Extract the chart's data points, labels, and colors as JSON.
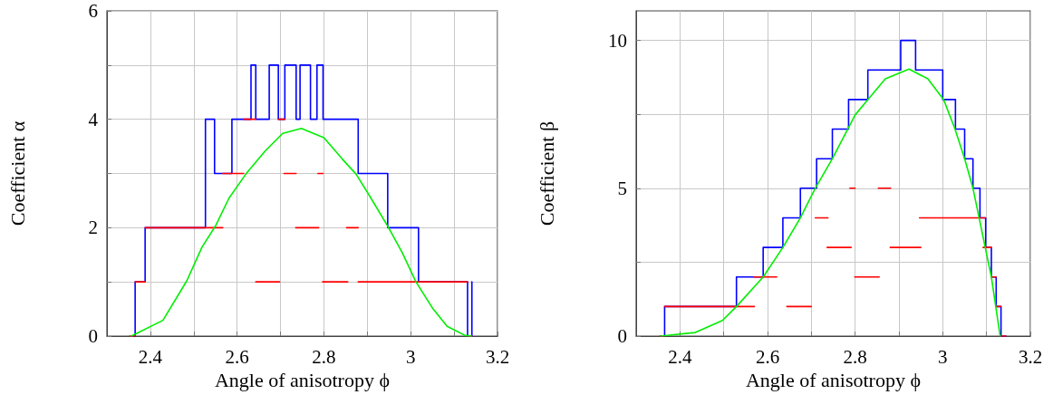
{
  "chart_data": [
    {
      "type": "line",
      "xlabel": "Angle of anisotropy ϕ",
      "ylabel": "Coefficient α",
      "xlim": [
        2.3,
        3.2
      ],
      "ylim": [
        0,
        6
      ],
      "xticks": [
        2.4,
        {
          "value": 2.5,
          "label": null
        },
        2.6,
        {
          "value": 2.7,
          "label": null
        },
        2.8,
        {
          "value": 2.9,
          "label": null
        },
        3,
        {
          "value": 3.1,
          "label": null
        },
        3.2
      ],
      "yticks": [
        0,
        {
          "value": 1,
          "label": null
        },
        2,
        {
          "value": 3,
          "label": null
        },
        4,
        {
          "value": 5,
          "label": null
        },
        6
      ],
      "grid": true,
      "marker": "none",
      "line_style": "solid",
      "series": [
        {
          "type": "step",
          "color": "#0000ff",
          "x": [
            2.355,
            2.365,
            2.388,
            2.527,
            2.548,
            2.588,
            2.632,
            2.643,
            2.674,
            2.695,
            2.71,
            2.736,
            2.745,
            2.769,
            2.784,
            2.798,
            2.879,
            2.947,
            3.018,
            3.131,
            3.141
          ],
          "values": [
            0,
            1,
            2,
            4,
            3,
            4,
            5,
            4,
            5,
            4,
            5,
            4,
            5,
            4,
            5,
            4,
            3,
            2,
            1,
            0,
            1
          ]
        },
        {
          "color": "#ff0000",
          "x": [
            2.353,
            2.365,
            null,
            3.131,
            3.141,
            null,
            2.365,
            2.388,
            null,
            2.643,
            2.698,
            null,
            2.797,
            2.855,
            null,
            2.879,
            3.131,
            null,
            2.388,
            2.567,
            null,
            2.735,
            2.788,
            null,
            2.852,
            2.879,
            null,
            2.567,
            2.615,
            null,
            2.708,
            2.736,
            null,
            2.786,
            2.798,
            null,
            2.615,
            2.643,
            null,
            2.695,
            2.71
          ],
          "values": [
            0,
            0,
            null,
            0,
            0,
            null,
            1,
            1,
            null,
            1,
            1,
            null,
            1,
            1,
            null,
            1,
            1,
            null,
            2,
            2,
            null,
            2,
            2,
            null,
            2,
            2,
            null,
            3,
            3,
            null,
            3,
            3,
            null,
            3,
            3,
            null,
            4,
            4,
            null,
            4,
            4
          ]
        },
        {
          "color": "#00ee00",
          "x": [
            2.356,
            2.429,
            2.484,
            2.519,
            2.55,
            2.581,
            2.622,
            2.664,
            2.705,
            2.748,
            2.8,
            2.842,
            2.874,
            2.905,
            2.947,
            2.981,
            3.012,
            3.05,
            3.084,
            3.126,
            3.14
          ],
          "values": [
            0,
            0.29,
            1.02,
            1.64,
            2.03,
            2.54,
            3.01,
            3.41,
            3.74,
            3.83,
            3.66,
            3.27,
            2.99,
            2.59,
            2.03,
            1.53,
            1.0,
            0.52,
            0.18,
            0.01,
            0
          ]
        }
      ]
    },
    {
      "type": "line",
      "xlabel": "Angle of anisotropy ϕ",
      "ylabel": "Coefficient β",
      "xlim": [
        2.3,
        3.2
      ],
      "ylim": [
        0,
        11
      ],
      "xticks": [
        2.4,
        {
          "value": 2.5,
          "label": null
        },
        2.6,
        {
          "value": 2.7,
          "label": null
        },
        2.8,
        {
          "value": 2.9,
          "label": null
        },
        3,
        {
          "value": 3.1,
          "label": null
        },
        3.2
      ],
      "yticks": [
        0,
        {
          "value": 2.5,
          "label": null
        },
        5,
        {
          "value": 7.5,
          "label": null
        },
        10
      ],
      "grid": true,
      "marker": "none",
      "line_style": "solid",
      "series": [
        {
          "type": "step",
          "color": "#0000ff",
          "x": [
            2.355,
            2.365,
            2.529,
            2.59,
            2.635,
            2.675,
            2.712,
            2.748,
            2.785,
            2.829,
            2.904,
            2.938,
            3.0,
            3.029,
            3.05,
            3.069,
            3.085,
            3.098,
            3.111,
            3.122,
            3.133,
            3.144
          ],
          "values": [
            0,
            1,
            2,
            3,
            4,
            5,
            6,
            7,
            8,
            9,
            10,
            9,
            8,
            7,
            6,
            5,
            4,
            3,
            2,
            1,
            0,
            0
          ]
        },
        {
          "color": "#ff0000",
          "x": [
            2.355,
            2.365,
            null,
            3.133,
            3.144,
            null,
            2.365,
            2.57,
            null,
            2.644,
            2.7,
            null,
            3.122,
            3.133,
            null,
            2.569,
            2.621,
            null,
            2.799,
            2.855,
            null,
            3.111,
            3.122,
            null,
            2.736,
            2.791,
            null,
            2.88,
            2.95,
            null,
            3.092,
            3.111,
            null,
            2.709,
            2.738,
            null,
            2.947,
            3.098,
            null,
            2.788,
            2.8,
            null,
            2.853,
            2.881
          ],
          "values": [
            0,
            0,
            null,
            0,
            0,
            null,
            1,
            1,
            null,
            1,
            1,
            null,
            1,
            1,
            null,
            2,
            2,
            null,
            2,
            2,
            null,
            2,
            2,
            null,
            3,
            3,
            null,
            3,
            3,
            null,
            3,
            3,
            null,
            4,
            4,
            null,
            4,
            4,
            null,
            5,
            5,
            null,
            5,
            5
          ]
        },
        {
          "color": "#00ee00",
          "x": [
            2.356,
            2.435,
            2.497,
            2.529,
            2.59,
            2.635,
            2.675,
            2.709,
            2.748,
            2.8,
            2.829,
            2.869,
            2.923,
            2.966,
            3.002,
            3.028,
            3.05,
            3.069,
            3.083,
            3.097,
            3.111,
            3.121,
            3.131
          ],
          "values": [
            0,
            0.12,
            0.53,
            1.0,
            2.0,
            3.0,
            4.0,
            5.0,
            6.0,
            7.48,
            8.0,
            8.7,
            9.03,
            8.7,
            8.0,
            7.0,
            6.0,
            5.0,
            4.0,
            3.0,
            2.0,
            1.0,
            0
          ]
        }
      ]
    }
  ]
}
